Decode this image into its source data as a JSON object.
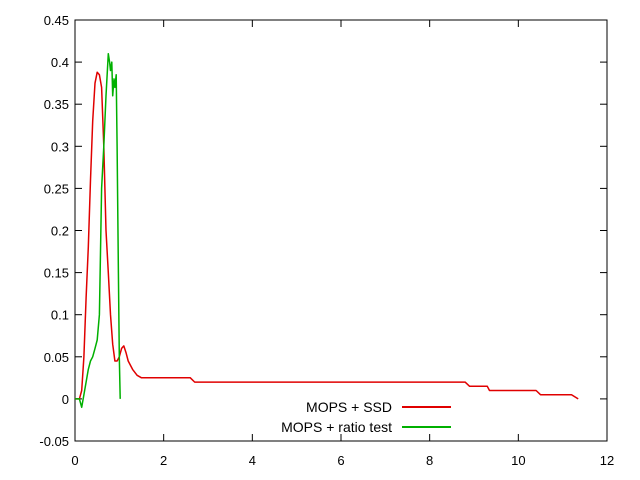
{
  "chart_data": {
    "type": "line",
    "title": "",
    "xlabel": "",
    "ylabel": "",
    "xlim": [
      0,
      12
    ],
    "ylim": [
      -0.05,
      0.45
    ],
    "xticks": [
      0,
      2,
      4,
      6,
      8,
      10,
      12
    ],
    "yticks": [
      -0.05,
      0,
      0.05,
      0.1,
      0.15,
      0.2,
      0.25,
      0.3,
      0.35,
      0.4,
      0.45
    ],
    "xtick_labels": [
      "0",
      "2",
      "4",
      "6",
      "8",
      "10",
      "12"
    ],
    "ytick_labels": [
      "-0.05",
      "0",
      "0.05",
      "0.1",
      "0.15",
      "0.2",
      "0.25",
      "0.3",
      "0.35",
      "0.4",
      "0.45"
    ],
    "grid": false,
    "legend_position": "bottom-right",
    "series": [
      {
        "name": "MOPS + SSD",
        "color": "#e00000",
        "points": [
          [
            0,
            0
          ],
          [
            0.1,
            0
          ],
          [
            0.15,
            0.01
          ],
          [
            0.2,
            0.05
          ],
          [
            0.25,
            0.12
          ],
          [
            0.3,
            0.18
          ],
          [
            0.35,
            0.26
          ],
          [
            0.4,
            0.33
          ],
          [
            0.45,
            0.375
          ],
          [
            0.5,
            0.388
          ],
          [
            0.55,
            0.385
          ],
          [
            0.6,
            0.37
          ],
          [
            0.65,
            0.3
          ],
          [
            0.7,
            0.2
          ],
          [
            0.75,
            0.15
          ],
          [
            0.8,
            0.1
          ],
          [
            0.85,
            0.065
          ],
          [
            0.9,
            0.045
          ],
          [
            0.95,
            0.045
          ],
          [
            1.0,
            0.05
          ],
          [
            1.05,
            0.06
          ],
          [
            1.1,
            0.063
          ],
          [
            1.15,
            0.055
          ],
          [
            1.2,
            0.045
          ],
          [
            1.3,
            0.035
          ],
          [
            1.4,
            0.028
          ],
          [
            1.5,
            0.025
          ],
          [
            2.6,
            0.025
          ],
          [
            2.7,
            0.02
          ],
          [
            8.8,
            0.02
          ],
          [
            8.9,
            0.015
          ],
          [
            9.3,
            0.015
          ],
          [
            9.35,
            0.01
          ],
          [
            10.4,
            0.01
          ],
          [
            10.5,
            0.005
          ],
          [
            11.2,
            0.005
          ],
          [
            11.35,
            0
          ]
        ]
      },
      {
        "name": "MOPS + ratio test",
        "color": "#00b000",
        "points": [
          [
            0,
            0
          ],
          [
            0.1,
            0
          ],
          [
            0.15,
            -0.01
          ],
          [
            0.2,
            0.005
          ],
          [
            0.25,
            0.02
          ],
          [
            0.3,
            0.035
          ],
          [
            0.35,
            0.045
          ],
          [
            0.4,
            0.05
          ],
          [
            0.45,
            0.06
          ],
          [
            0.5,
            0.07
          ],
          [
            0.55,
            0.1
          ],
          [
            0.6,
            0.25
          ],
          [
            0.65,
            0.3
          ],
          [
            0.7,
            0.36
          ],
          [
            0.75,
            0.41
          ],
          [
            0.78,
            0.4
          ],
          [
            0.8,
            0.39
          ],
          [
            0.83,
            0.4
          ],
          [
            0.85,
            0.36
          ],
          [
            0.88,
            0.38
          ],
          [
            0.9,
            0.37
          ],
          [
            0.93,
            0.385
          ],
          [
            0.95,
            0.3
          ],
          [
            0.98,
            0.15
          ],
          [
            1.0,
            0.05
          ],
          [
            1.02,
            0
          ]
        ]
      }
    ]
  }
}
